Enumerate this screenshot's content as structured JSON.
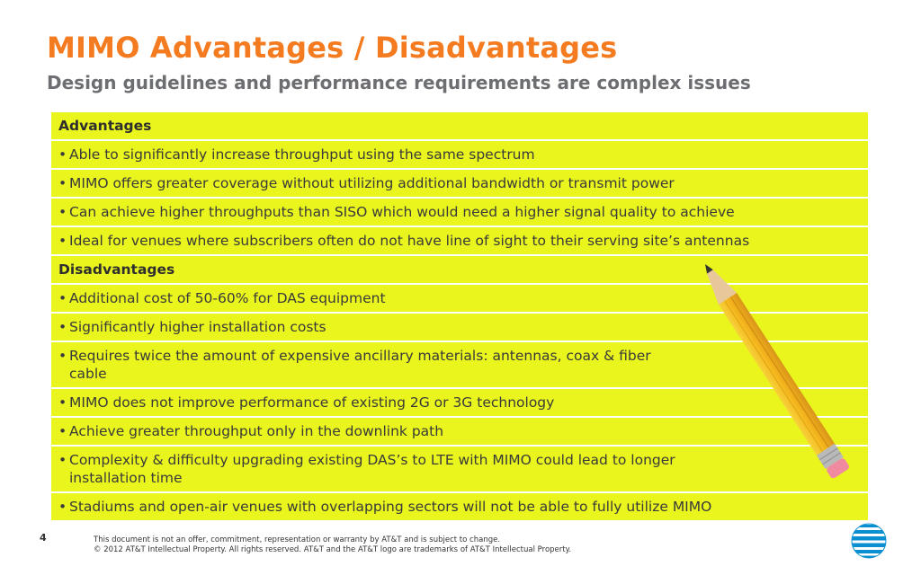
{
  "header": {
    "title": "MIMO Advantages / Disadvantages",
    "subtitle": "Design guidelines and performance requirements are complex issues"
  },
  "table": {
    "advantages": {
      "heading": "Advantages",
      "bullet": "•",
      "items": [
        "Able to significantly increase throughput using the same spectrum",
        "MIMO offers greater coverage without utilizing additional bandwidth or transmit power",
        "Can achieve higher throughputs than SISO which would need a higher signal quality to achieve",
        "Ideal for venues where subscribers often do not have line of sight to their serving site’s antennas"
      ]
    },
    "disadvantages": {
      "heading": "Disadvantages",
      "items": [
        "Additional cost of 50-60% for DAS equipment",
        "Significantly higher installation costs",
        "Requires twice the amount of expensive ancillary materials: antennas, coax & fiber cable",
        "MIMO does not improve performance of existing 2G or 3G technology",
        "Achieve greater throughput only in the downlink path",
        "Complexity & difficulty upgrading existing DAS’s to LTE with MIMO could lead to longer installation time",
        "Stadiums and open-air venues with overlapping sectors will not be able to fully utilize MIMO"
      ]
    }
  },
  "footer": {
    "page_number": "4",
    "disclaimer_line1": "This document is not an offer, commitment, representation or warranty by AT&T and is subject to change.",
    "disclaimer_line2": "© 2012 AT&T Intellectual Property. All rights reserved. AT&T and the AT&T logo are trademarks of AT&T Intellectual Property."
  },
  "decor": {
    "pencil_icon": "pencil-icon",
    "logo_icon": "att-globe-logo-icon",
    "colors": {
      "title": "#f47b20",
      "subtitle": "#6d6e71",
      "row_fill": "#e9f51c",
      "logo_blue": "#0a8fd1"
    }
  }
}
